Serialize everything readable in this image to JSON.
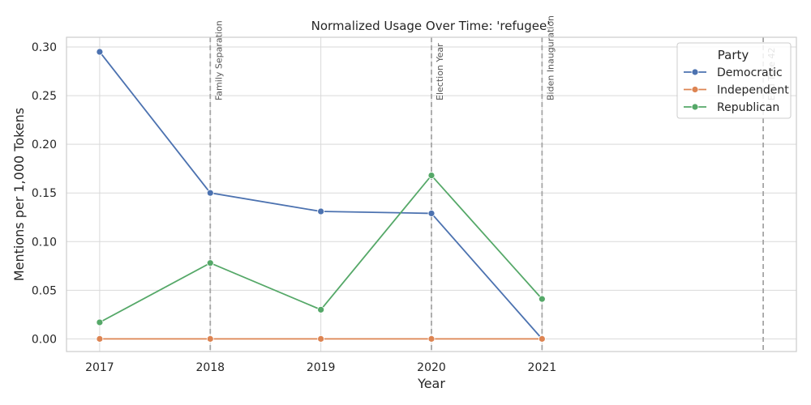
{
  "chart_data": {
    "type": "line",
    "title": "Normalized Usage Over Time: 'refugee'",
    "xlabel": "Year",
    "ylabel": "Mentions per 1,000 Tokens",
    "x": [
      2017,
      2018,
      2019,
      2020,
      2021
    ],
    "xticks": [
      "2017",
      "2018",
      "2019",
      "2020",
      "2021"
    ],
    "xlim": [
      2016.7,
      2023.3
    ],
    "ylim": [
      -0.013,
      0.31
    ],
    "yticks": [
      "0.00",
      "0.05",
      "0.10",
      "0.15",
      "0.20",
      "0.25",
      "0.30"
    ],
    "grid": true,
    "legend": {
      "title": "Party",
      "position": "top-right"
    },
    "series": [
      {
        "name": "Democratic",
        "color": "#4c72b0",
        "values": [
          0.295,
          0.15,
          0.131,
          0.129,
          0.0
        ]
      },
      {
        "name": "Independent",
        "color": "#dd8452",
        "values": [
          0.0,
          0.0,
          0.0,
          0.0,
          0.0
        ]
      },
      {
        "name": "Republican",
        "color": "#55a868",
        "values": [
          0.017,
          0.078,
          0.03,
          0.168,
          0.041
        ]
      }
    ],
    "events": [
      {
        "x": 2018.0,
        "label": "Family Separation"
      },
      {
        "x": 2020.0,
        "label": "Election Year"
      },
      {
        "x": 2021.0,
        "label": "Biden Inauguration"
      },
      {
        "x": 2023.0,
        "label": "End Title 42"
      }
    ]
  }
}
